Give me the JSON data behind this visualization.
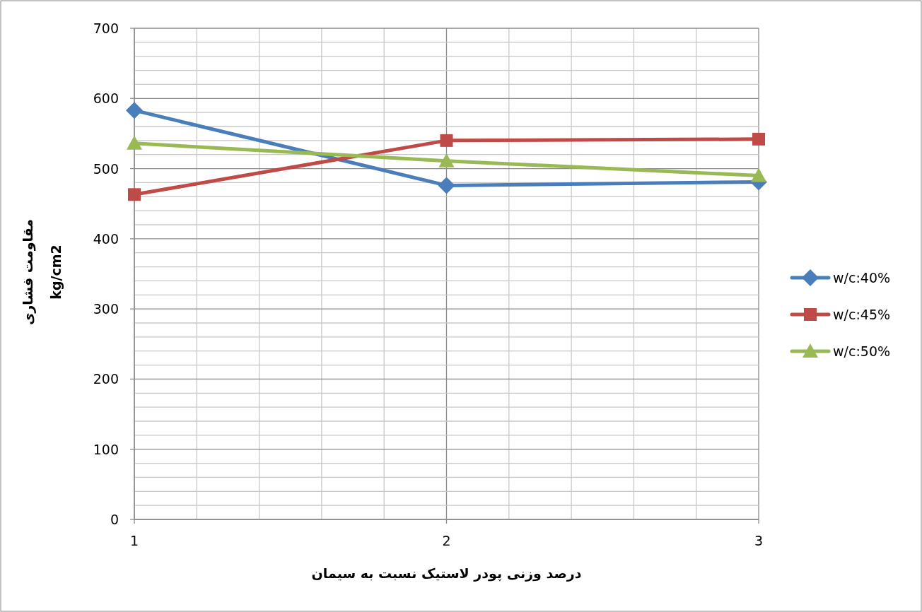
{
  "chart_data": {
    "type": "line",
    "xlabel": "درصد وزنی پودر لاستیک نسبت به سیمان",
    "ylabel": "مقاومت فشاری\nkg/cm2",
    "x": [
      1,
      2,
      3
    ],
    "series": [
      {
        "name": "w/c:40%",
        "color": "#4a7ebb",
        "marker": "diamond",
        "values": [
          583,
          476,
          481
        ]
      },
      {
        "name": "w/c:45%",
        "color": "#be4b48",
        "marker": "square",
        "values": [
          463,
          540,
          542
        ]
      },
      {
        "name": "w/c:50%",
        "color": "#98b954",
        "marker": "triangle",
        "values": [
          536,
          511,
          490
        ]
      }
    ],
    "xlim": [
      1,
      3
    ],
    "ylim": [
      0,
      700
    ],
    "xticks": [
      1,
      {
        "value": 1.2,
        "label": null
      },
      {
        "value": 1.4,
        "label": null
      },
      {
        "value": 1.6,
        "label": null
      },
      {
        "value": 1.8,
        "label": null
      },
      2,
      {
        "value": 2.2,
        "label": null
      },
      {
        "value": 2.4,
        "label": null
      },
      {
        "value": 2.6,
        "label": null
      },
      {
        "value": 2.8,
        "label": null
      },
      3
    ],
    "yticks": [
      0,
      {
        "value": 20,
        "label": null
      },
      {
        "value": 40,
        "label": null
      },
      {
        "value": 60,
        "label": null
      },
      {
        "value": 80,
        "label": null
      },
      100,
      {
        "value": 120,
        "label": null
      },
      {
        "value": 140,
        "label": null
      },
      {
        "value": 160,
        "label": null
      },
      {
        "value": 180,
        "label": null
      },
      200,
      {
        "value": 220,
        "label": null
      },
      {
        "value": 240,
        "label": null
      },
      {
        "value": 260,
        "label": null
      },
      {
        "value": 280,
        "label": null
      },
      300,
      {
        "value": 320,
        "label": null
      },
      {
        "value": 340,
        "label": null
      },
      {
        "value": 360,
        "label": null
      },
      {
        "value": 380,
        "label": null
      },
      400,
      {
        "value": 420,
        "label": null
      },
      {
        "value": 440,
        "label": null
      },
      {
        "value": 460,
        "label": null
      },
      {
        "value": 480,
        "label": null
      },
      500,
      {
        "value": 520,
        "label": null
      },
      {
        "value": 540,
        "label": null
      },
      {
        "value": 560,
        "label": null
      },
      {
        "value": 580,
        "label": null
      },
      600,
      {
        "value": 620,
        "label": null
      },
      {
        "value": 640,
        "label": null
      },
      {
        "value": 660,
        "label": null
      },
      {
        "value": 680,
        "label": null
      },
      700
    ],
    "grid": true,
    "legend": "right",
    "line_style": "solid"
  }
}
